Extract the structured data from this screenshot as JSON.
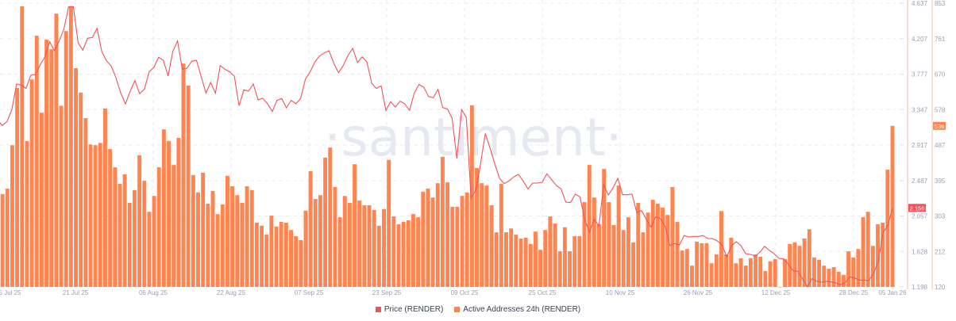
{
  "watermark": "·santiment·",
  "legend": [
    {
      "label": "Price (RENDER)",
      "color": "#f2525a"
    },
    {
      "label": "Active Addresses 24h (RENDER)",
      "color": "#ff8450"
    }
  ],
  "chart_data": {
    "type": "bar+line",
    "x_ticks": [
      "05 Jul 25",
      "21 Jul 25",
      "06 Aug 25",
      "22 Aug 25",
      "07 Sep 25",
      "23 Sep 25",
      "09 Oct 25",
      "25 Oct 25",
      "10 Nov 25",
      "26 Nov 25",
      "12 Dec 25",
      "28 Dec 25",
      "05 Jan 26"
    ],
    "x_range": [
      "05 Jul 25",
      "05 Jan 26"
    ],
    "grid": true,
    "legend_position": "bottom",
    "price_axis": {
      "ticks": [
        "4.637",
        "4.207",
        "3.777",
        "3.347",
        "2.917",
        "2.487",
        "2.057",
        "1.628",
        "1.198"
      ],
      "ylim": [
        1.198,
        4.637
      ],
      "last_value_label": "2.156",
      "color": "#f2525a"
    },
    "addresses_axis": {
      "ticks": [
        "853",
        "761",
        "670",
        "578",
        "487",
        "395",
        "303",
        "212",
        "120"
      ],
      "ylim": [
        120,
        853
      ],
      "last_value_label": "536",
      "color": "#ff8450"
    },
    "series": [
      {
        "name": "Price (RENDER)",
        "type": "line",
        "color": "#f2525a",
        "values": [
          3.218,
          3.155,
          3.203,
          3.347,
          3.657,
          3.645,
          3.603,
          3.763,
          3.773,
          3.891,
          3.987,
          4.169,
          4.061,
          4.179,
          4.323,
          4.595,
          4.595,
          4.157,
          4.067,
          4.211,
          4.221,
          4.333,
          4.051,
          3.939,
          3.875,
          3.731,
          3.548,
          3.417,
          3.571,
          3.699,
          3.539,
          3.596,
          3.805,
          3.859,
          3.981,
          3.945,
          3.753,
          4.051,
          4.179,
          3.837,
          3.849,
          3.933,
          3.945,
          3.747,
          3.548,
          3.677,
          3.545,
          3.881,
          3.837,
          3.805,
          3.753,
          3.394,
          3.587,
          3.571,
          3.657,
          3.465,
          3.484,
          3.42,
          3.324,
          3.459,
          3.481,
          3.369,
          3.459,
          3.417,
          3.481,
          3.715,
          3.805,
          3.923,
          3.997,
          4.035,
          4.061,
          3.907,
          3.795,
          3.881,
          4.003,
          4.089,
          3.917,
          3.987,
          3.923,
          3.667,
          3.603,
          3.635,
          3.337,
          3.443,
          3.379,
          3.449,
          3.417,
          3.337,
          3.548,
          3.651,
          3.619,
          3.506,
          3.49,
          3.593,
          3.372,
          3.355,
          3.241,
          2.754,
          3.347,
          3.251,
          2.274,
          2.37,
          2.69,
          3.058,
          2.882,
          2.69,
          2.514,
          2.45,
          2.482,
          2.53,
          2.562,
          2.482,
          2.386,
          2.456,
          2.456,
          2.466,
          2.569,
          2.498,
          2.428,
          2.386,
          2.226,
          2.219,
          2.322,
          2.29,
          2.018,
          1.858,
          2.018,
          1.938,
          2.434,
          2.312,
          2.402,
          2.514,
          2.315,
          2.315,
          2.322,
          2.098,
          2.123,
          2.018,
          1.922,
          2.05,
          2.024,
          1.928,
          1.698,
          1.723,
          1.707,
          1.82,
          1.803,
          1.81,
          1.81,
          1.82,
          1.784,
          1.784,
          1.755,
          1.707,
          1.563,
          1.698,
          1.746,
          1.698,
          1.601,
          1.592,
          1.57,
          1.618,
          1.691,
          1.64,
          1.601,
          1.544,
          1.537,
          1.473,
          1.393,
          1.387,
          1.297,
          1.201,
          1.297,
          1.265,
          1.256,
          1.265,
          1.259,
          1.249,
          1.224,
          1.249,
          1.32,
          1.307,
          1.281,
          1.281,
          1.275,
          1.361,
          1.505,
          1.858,
          1.938,
          2.156
        ]
      },
      {
        "name": "Active Addresses 24h (RENDER)",
        "type": "bar",
        "color": "#ff8450",
        "values": [
          364,
          360,
          374,
          486,
          634,
          845,
          497,
          656,
          769,
          570,
          759,
          734,
          826,
          588,
          781,
          845,
          685,
          622,
          556,
          488,
          486,
          492,
          581,
          476,
          429,
          386,
          411,
          337,
          370,
          460,
          394,
          314,
          355,
          429,
          527,
          497,
          435,
          505,
          697,
          640,
          409,
          364,
          415,
          335,
          368,
          308,
          333,
          407,
          380,
          357,
          337,
          380,
          370,
          286,
          278,
          255,
          304,
          276,
          288,
          286,
          267,
          251,
          241,
          317,
          419,
          347,
          357,
          454,
          480,
          378,
          300,
          355,
          337,
          437,
          343,
          331,
          331,
          319,
          278,
          321,
          448,
          302,
          282,
          288,
          292,
          308,
          300,
          366,
          374,
          351,
          388,
          456,
          390,
          327,
          327,
          355,
          364,
          589,
          427,
          388,
          382,
          331,
          261,
          386,
          261,
          271,
          255,
          245,
          247,
          231,
          263,
          216,
          267,
          302,
          284,
          212,
          274,
          212,
          251,
          251,
          339,
          435,
          351,
          282,
          425,
          339,
          280,
          382,
          267,
          300,
          235,
          337,
          261,
          312,
          345,
          335,
          325,
          306,
          378,
          288,
          214,
          218,
          175,
          237,
          233,
          233,
          181,
          204,
          316,
          204,
          247,
          181,
          194,
          175,
          194,
          204,
          198,
          161,
          186,
          192,
          120,
          192,
          231,
          235,
          226,
          245,
          269,
          196,
          190,
          175,
          167,
          171,
          159,
          151,
          212,
          196,
          218,
          300,
          314,
          226,
          282,
          286,
          423,
          536
        ]
      }
    ]
  }
}
